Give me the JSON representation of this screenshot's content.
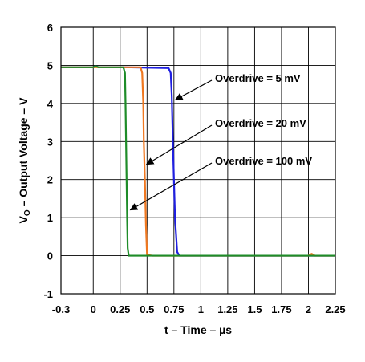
{
  "chart_data": {
    "type": "line",
    "xlabel": "t – Time – µs",
    "ylabel_main": "V",
    "ylabel_sub": "O",
    "ylabel_rest": " – Output Voltage – V",
    "xlim": [
      -0.3,
      2.25
    ],
    "ylim": [
      -1,
      6
    ],
    "x_ticks": [
      -0.3,
      0,
      0.25,
      0.5,
      0.75,
      1,
      1.25,
      1.5,
      1.75,
      2,
      2.25
    ],
    "x_tick_labels": [
      "-0.3",
      "0",
      "0.25",
      "0.5",
      "0.75",
      "1",
      "1.25",
      "1.5",
      "1.75",
      "2",
      "2.25"
    ],
    "y_ticks": [
      -1,
      0,
      1,
      2,
      3,
      4,
      5,
      6
    ],
    "y_tick_labels": [
      "-1",
      "0",
      "1",
      "2",
      "3",
      "4",
      "5",
      "6"
    ],
    "grid": true,
    "series": [
      {
        "color": "#1f1fe0",
        "x": [
          -0.3,
          0.0,
          0.02,
          0.05,
          0.3,
          0.7,
          0.72,
          0.73,
          0.74,
          0.75,
          0.76,
          0.78,
          0.8,
          1.0,
          1.5,
          2.0,
          2.25
        ],
        "y": [
          4.95,
          4.95,
          4.98,
          4.95,
          4.95,
          4.93,
          4.8,
          4.2,
          3.0,
          2.0,
          1.0,
          0.1,
          0.0,
          0.0,
          0.0,
          0.0,
          0.0
        ]
      },
      {
        "color": "#f07820",
        "x": [
          -0.3,
          0.0,
          0.3,
          0.44,
          0.455,
          0.465,
          0.47,
          0.48,
          0.49,
          0.5,
          0.55,
          1.0,
          1.5,
          2.0,
          2.03,
          2.06,
          2.25
        ],
        "y": [
          4.95,
          4.95,
          4.95,
          4.95,
          4.8,
          4.0,
          3.0,
          2.0,
          0.8,
          0.02,
          0.0,
          0.0,
          0.0,
          0.0,
          0.05,
          0.0,
          0.0
        ]
      },
      {
        "color": "#1e8c28",
        "x": [
          -0.3,
          0.0,
          0.02,
          0.05,
          0.2,
          0.28,
          0.295,
          0.3,
          0.305,
          0.31,
          0.315,
          0.32,
          0.33,
          0.4,
          1.0,
          1.5,
          2.0,
          2.25
        ],
        "y": [
          4.95,
          4.95,
          4.98,
          4.95,
          4.95,
          4.95,
          4.8,
          4.0,
          3.0,
          2.0,
          1.0,
          0.2,
          0.0,
          0.0,
          0.0,
          0.0,
          0.0,
          0.0
        ]
      }
    ],
    "annotations": [
      {
        "text": "Overdrive = 5 mV",
        "arrow_to": [
          0.75,
          4.1
        ]
      },
      {
        "text": "Overdrive = 20 mV",
        "arrow_to": [
          0.48,
          2.4
        ]
      },
      {
        "text": "Overdrive = 100 mV",
        "arrow_to": [
          0.33,
          1.2
        ]
      }
    ]
  }
}
